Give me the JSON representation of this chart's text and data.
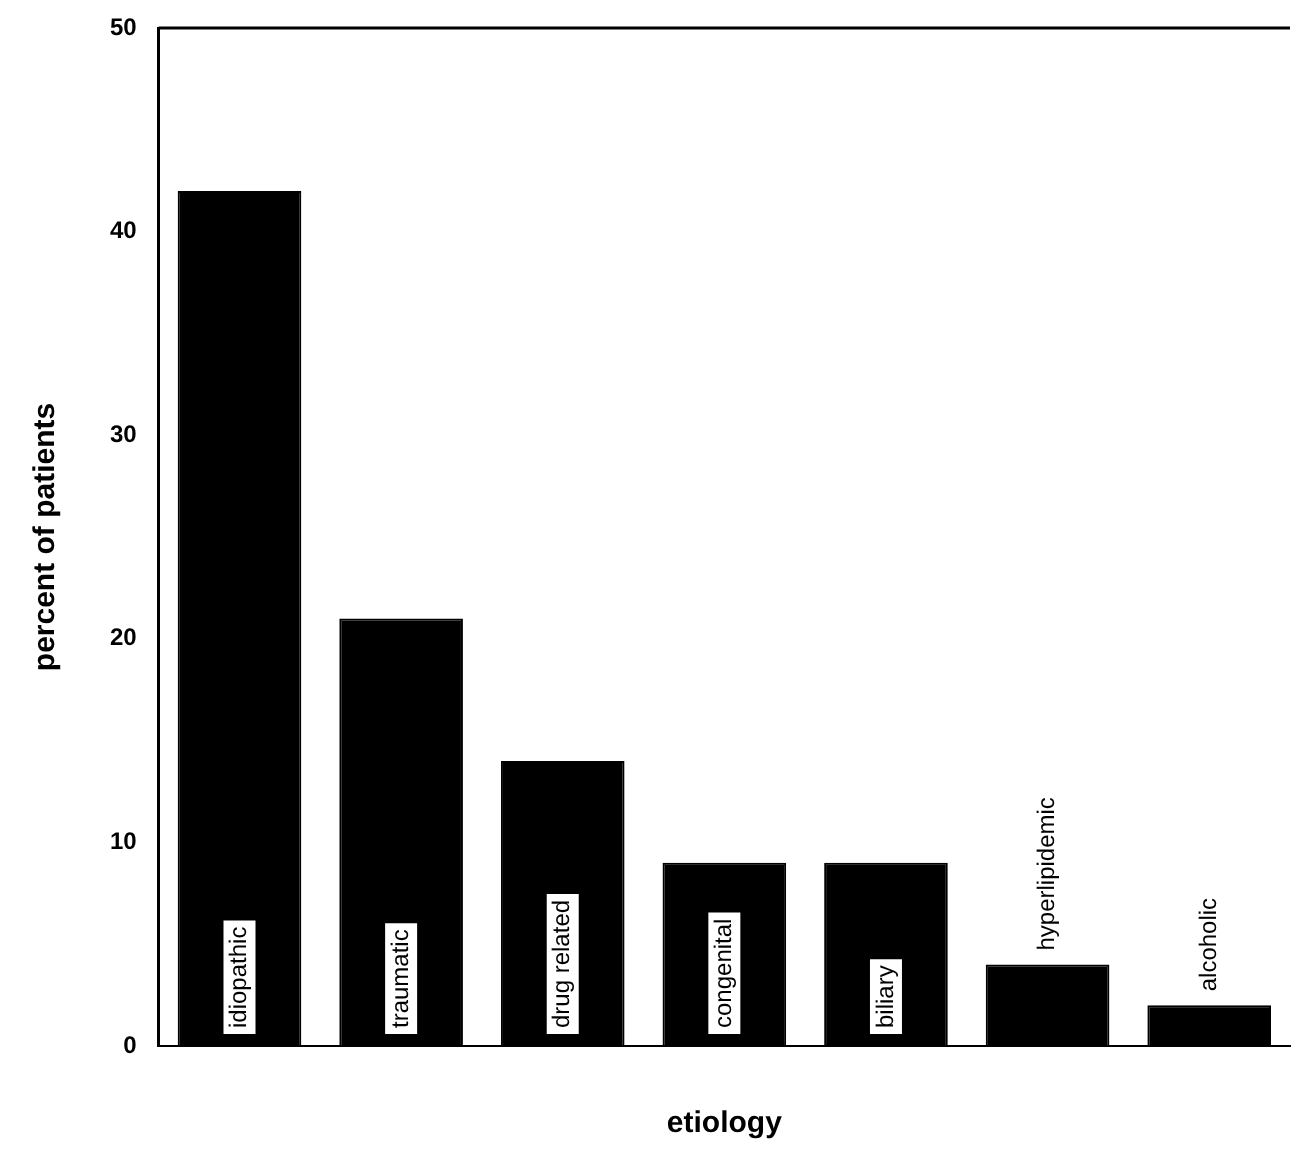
{
  "chart_data": {
    "type": "bar",
    "xlabel": "etiology",
    "ylabel": "percent of patients",
    "categories": [
      "idiopathic",
      "traumatic",
      "drug related",
      "congenital",
      "biliary",
      "hyperlipidemic",
      "alcoholic"
    ],
    "values": [
      42,
      21,
      14,
      9,
      9,
      4,
      2
    ],
    "color": "#000000",
    "ylim": [
      0,
      50
    ],
    "yticks": [
      0,
      10,
      20,
      30,
      40,
      50
    ],
    "grid": false,
    "legend": false
  }
}
